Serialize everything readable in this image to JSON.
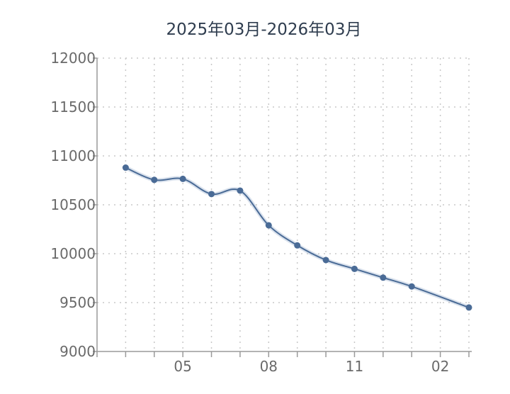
{
  "chart_data": {
    "type": "line",
    "title": "2025年03月-2026年03月",
    "xlabel": "",
    "ylabel": "",
    "x": [
      "2025-03",
      "2025-04",
      "2025-05",
      "2025-06",
      "2025-07",
      "2025-08",
      "2025-09",
      "2025-10",
      "2025-11",
      "2025-12",
      "2026-01",
      "2026-02",
      "2026-03"
    ],
    "x_tick_labels": [
      "05",
      "08",
      "11",
      "02"
    ],
    "x_tick_positions": [
      "2025-05",
      "2025-08",
      "2025-11",
      "2026-02"
    ],
    "ylim": [
      9000,
      12000
    ],
    "y_ticks": [
      9000,
      9500,
      10000,
      10500,
      11000,
      11500,
      12000
    ],
    "y_tick_labels": [
      "9000",
      "9500",
      "10000",
      "10500",
      "11000",
      "11500",
      "12000"
    ],
    "series": [
      {
        "values": [
          10880,
          10755,
          10765,
          10610,
          10645,
          10290,
          10085,
          9935,
          9845,
          9755,
          9665,
          null,
          9450
        ]
      }
    ],
    "grid": true,
    "colors": {
      "line": "#4a6b96",
      "marker": "#4a6b96",
      "grid": "#c8c8c8",
      "axis": "#9a9a9a",
      "tick_text": "#6a6a6a"
    }
  }
}
